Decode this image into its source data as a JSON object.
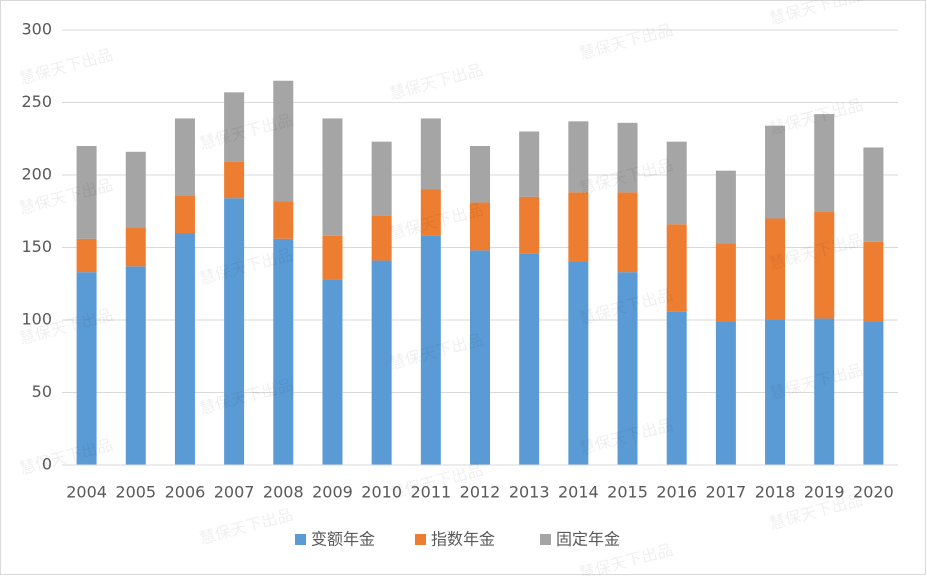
{
  "chart_data": {
    "type": "stacked_bar",
    "categories": [
      "2004",
      "2005",
      "2006",
      "2007",
      "2008",
      "2009",
      "2010",
      "2011",
      "2012",
      "2013",
      "2014",
      "2015",
      "2016",
      "2017",
      "2018",
      "2019",
      "2020"
    ],
    "series": [
      {
        "name": "变额年金",
        "color": "#5b9bd5",
        "values": [
          133,
          137,
          160,
          184,
          156,
          128,
          141,
          158,
          148,
          146,
          140,
          133,
          106,
          99,
          100,
          101,
          99
        ]
      },
      {
        "name": "指数年金",
        "color": "#ed7d31",
        "values": [
          23,
          27,
          26,
          25,
          26,
          30,
          31,
          32,
          33,
          39,
          48,
          55,
          60,
          54,
          70,
          74,
          55
        ]
      },
      {
        "name": "固定年金",
        "color": "#a5a5a5",
        "values": [
          64,
          52,
          53,
          48,
          83,
          81,
          51,
          49,
          39,
          45,
          49,
          48,
          57,
          50,
          64,
          67,
          65
        ]
      }
    ],
    "ylim": [
      0,
      300
    ],
    "yticks": [
      0,
      50,
      100,
      150,
      200,
      250,
      300
    ],
    "grid": true,
    "legend": "bottom",
    "watermark": "慧保天下出品"
  }
}
